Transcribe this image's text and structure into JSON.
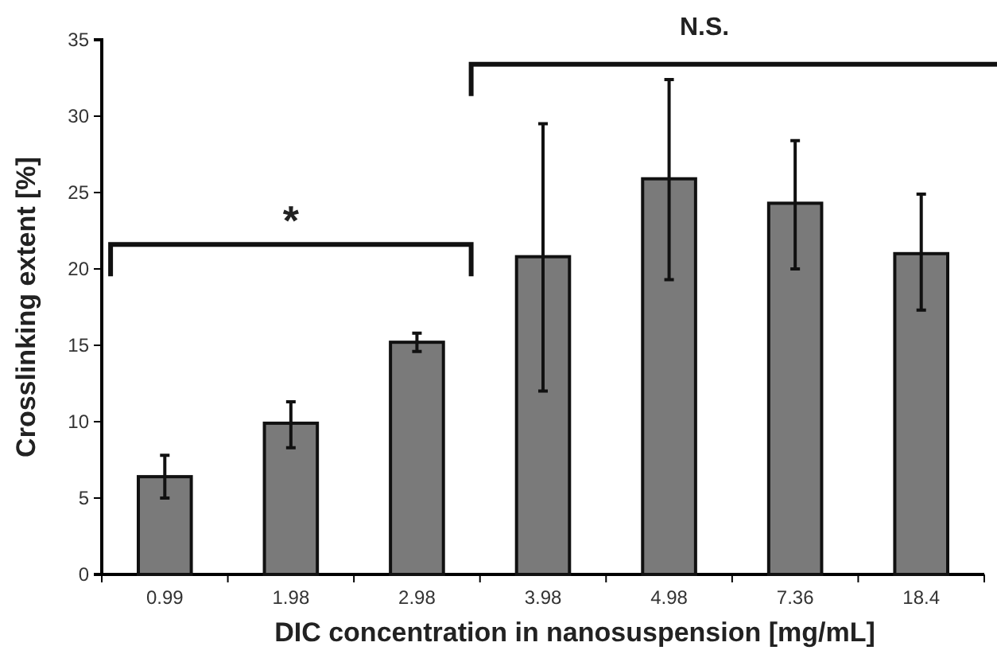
{
  "chart_data": {
    "type": "bar",
    "xlabel": "DIC concentration in nanosuspension [mg/mL]",
    "ylabel": "Crosslinking extent [%]",
    "categories": [
      "0.99",
      "1.98",
      "2.98",
      "3.98",
      "4.98",
      "7.36",
      "18.4"
    ],
    "values": [
      6.4,
      9.9,
      15.2,
      20.8,
      25.9,
      24.3,
      21.0
    ],
    "errors": [
      [
        5.0,
        7.8
      ],
      [
        8.3,
        11.3
      ],
      [
        14.6,
        15.8
      ],
      [
        12.0,
        29.5
      ],
      [
        19.3,
        32.4
      ],
      [
        20.0,
        28.4
      ],
      [
        17.3,
        24.9
      ]
    ],
    "color": "#7a7a7a",
    "ylim": [
      0,
      35
    ],
    "yticks": [
      0,
      5,
      10,
      15,
      20,
      25,
      30,
      35
    ],
    "grid": false,
    "annotations": [
      "*",
      "N.S."
    ]
  }
}
